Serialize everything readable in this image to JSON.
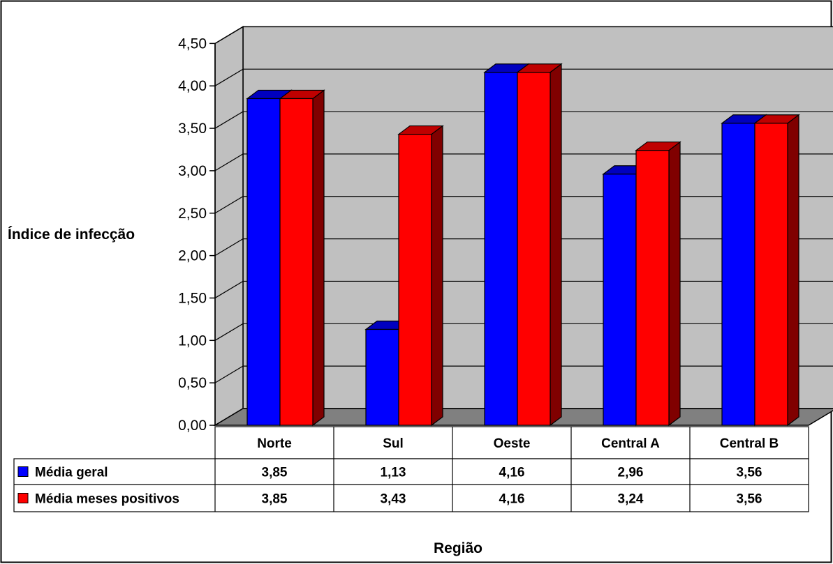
{
  "chart_data": {
    "type": "bar",
    "ylabel": "Índice de infecção",
    "xlabel": "Região",
    "categories": [
      "Norte",
      "Sul",
      "Oeste",
      "Central A",
      "Central B"
    ],
    "series": [
      {
        "name": "Média geral",
        "color": "#0000ff",
        "values": [
          3.85,
          1.13,
          4.16,
          2.96,
          3.56
        ],
        "value_labels": [
          "3,85",
          "1,13",
          "4,16",
          "2,96",
          "3,56"
        ]
      },
      {
        "name": "Média meses positivos",
        "color": "#ff0000",
        "values": [
          3.85,
          3.43,
          4.16,
          3.24,
          3.56
        ],
        "value_labels": [
          "3,85",
          "3,43",
          "4,16",
          "3,24",
          "3,56"
        ]
      }
    ],
    "ylim": [
      0,
      4.5
    ],
    "yticks": [
      0,
      0.5,
      1,
      1.5,
      2,
      2.5,
      3,
      3.5,
      4,
      4.5
    ],
    "ytick_labels": [
      "0,00",
      "0,50",
      "1,00",
      "1,50",
      "2,00",
      "2,50",
      "3,00",
      "3,50",
      "4,00",
      "4,50"
    ],
    "grid": true,
    "style": "3d-clustered-column",
    "legend": "data table below chart"
  }
}
